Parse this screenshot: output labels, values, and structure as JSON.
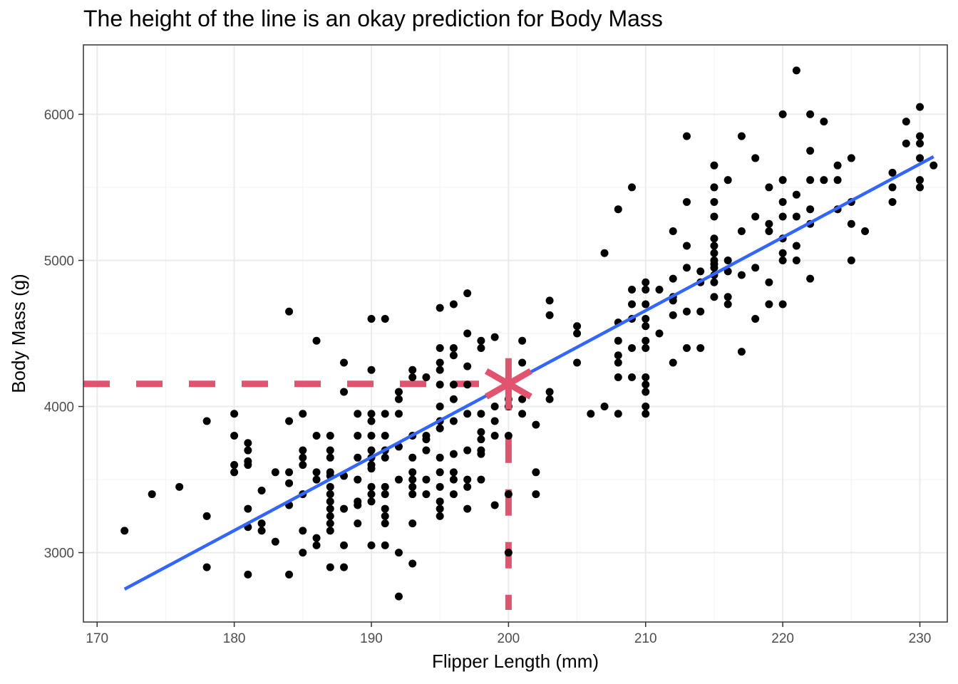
{
  "chart_data": {
    "type": "scatter",
    "title": "The height of the line is an okay prediction for Body Mass",
    "xlabel": "Flipper Length (mm)",
    "ylabel": "Body Mass (g)",
    "xlim": [
      169,
      232
    ],
    "ylim": [
      2525,
      6475
    ],
    "x_ticks": [
      170,
      180,
      190,
      200,
      210,
      220,
      230
    ],
    "y_ticks": [
      3000,
      4000,
      5000,
      6000
    ],
    "grid": true,
    "points": [
      [
        172,
        3150
      ],
      [
        174,
        3400
      ],
      [
        176,
        3450
      ],
      [
        178,
        3900
      ],
      [
        178,
        3250
      ],
      [
        178,
        2900
      ],
      [
        180,
        3950
      ],
      [
        180,
        3800
      ],
      [
        180,
        3600
      ],
      [
        180,
        3550
      ],
      [
        181,
        3750
      ],
      [
        181,
        3700
      ],
      [
        181,
        3625
      ],
      [
        181,
        3600
      ],
      [
        181,
        3300
      ],
      [
        181,
        3175
      ],
      [
        181,
        2850
      ],
      [
        182,
        3425
      ],
      [
        182,
        3200
      ],
      [
        182,
        3150
      ],
      [
        183,
        3550
      ],
      [
        183,
        3075
      ],
      [
        184,
        4650
      ],
      [
        184,
        3900
      ],
      [
        184,
        3550
      ],
      [
        184,
        3325
      ],
      [
        184,
        3475
      ],
      [
        184,
        2850
      ],
      [
        185,
        3950
      ],
      [
        185,
        3700
      ],
      [
        185,
        3650
      ],
      [
        185,
        3600
      ],
      [
        185,
        3400
      ],
      [
        185,
        3150
      ],
      [
        185,
        3000
      ],
      [
        186,
        4450
      ],
      [
        186,
        3800
      ],
      [
        186,
        3550
      ],
      [
        186,
        3500
      ],
      [
        186,
        3100
      ],
      [
        186,
        3050
      ],
      [
        187,
        3800
      ],
      [
        187,
        3700
      ],
      [
        187,
        3650
      ],
      [
        187,
        3550
      ],
      [
        187,
        3525
      ],
      [
        187,
        3450
      ],
      [
        187,
        3400
      ],
      [
        187,
        3350
      ],
      [
        187,
        3300
      ],
      [
        187,
        3250
      ],
      [
        187,
        3200
      ],
      [
        187,
        3150
      ],
      [
        187,
        2900
      ],
      [
        188,
        4300
      ],
      [
        188,
        4100
      ],
      [
        188,
        3525
      ],
      [
        188,
        3300
      ],
      [
        188,
        3050
      ],
      [
        188,
        2900
      ],
      [
        189,
        3950
      ],
      [
        189,
        3800
      ],
      [
        189,
        3650
      ],
      [
        189,
        3500
      ],
      [
        189,
        3350
      ],
      [
        189,
        3325
      ],
      [
        189,
        3200
      ],
      [
        190,
        4600
      ],
      [
        190,
        4250
      ],
      [
        190,
        3950
      ],
      [
        190,
        3900
      ],
      [
        190,
        3800
      ],
      [
        190,
        3700
      ],
      [
        190,
        3650
      ],
      [
        190,
        3600
      ],
      [
        190,
        3575
      ],
      [
        190,
        3450
      ],
      [
        190,
        3400
      ],
      [
        190,
        3350
      ],
      [
        190,
        3050
      ],
      [
        191,
        4600
      ],
      [
        191,
        3950
      ],
      [
        191,
        3800
      ],
      [
        191,
        3700
      ],
      [
        191,
        3650
      ],
      [
        191,
        3450
      ],
      [
        191,
        3400
      ],
      [
        191,
        3300
      ],
      [
        191,
        3250
      ],
      [
        191,
        3200
      ],
      [
        191,
        3050
      ],
      [
        192,
        4100
      ],
      [
        192,
        4050
      ],
      [
        192,
        3950
      ],
      [
        192,
        3725
      ],
      [
        192,
        3500
      ],
      [
        192,
        3000
      ],
      [
        192,
        2700
      ],
      [
        193,
        4250
      ],
      [
        193,
        4200
      ],
      [
        193,
        3800
      ],
      [
        193,
        3650
      ],
      [
        193,
        3550
      ],
      [
        193,
        3500
      ],
      [
        193,
        3450
      ],
      [
        193,
        3400
      ],
      [
        193,
        3200
      ],
      [
        193,
        2925
      ],
      [
        194,
        4200
      ],
      [
        194,
        3800
      ],
      [
        194,
        3775
      ],
      [
        194,
        3700
      ],
      [
        194,
        3500
      ],
      [
        194,
        3400
      ],
      [
        195,
        4675
      ],
      [
        195,
        4400
      ],
      [
        195,
        4300
      ],
      [
        195,
        4250
      ],
      [
        195,
        4150
      ],
      [
        195,
        4000
      ],
      [
        195,
        3900
      ],
      [
        195,
        3850
      ],
      [
        195,
        3650
      ],
      [
        195,
        3550
      ],
      [
        195,
        3450
      ],
      [
        195,
        3350
      ],
      [
        195,
        3300
      ],
      [
        195,
        3250
      ],
      [
        196,
        4700
      ],
      [
        196,
        4400
      ],
      [
        196,
        4350
      ],
      [
        196,
        4150
      ],
      [
        196,
        4050
      ],
      [
        196,
        3900
      ],
      [
        196,
        3675
      ],
      [
        196,
        3550
      ],
      [
        196,
        3500
      ],
      [
        196,
        3400
      ],
      [
        197,
        4775
      ],
      [
        197,
        4500
      ],
      [
        197,
        4275
      ],
      [
        197,
        4150
      ],
      [
        197,
        3950
      ],
      [
        197,
        3700
      ],
      [
        197,
        3500
      ],
      [
        197,
        3450
      ],
      [
        197,
        3300
      ],
      [
        198,
        4450
      ],
      [
        198,
        4400
      ],
      [
        198,
        3950
      ],
      [
        198,
        3825
      ],
      [
        198,
        3775
      ],
      [
        198,
        3700
      ],
      [
        198,
        3675
      ],
      [
        198,
        3500
      ],
      [
        199,
        4475
      ],
      [
        199,
        4000
      ],
      [
        199,
        3900
      ],
      [
        199,
        3800
      ],
      [
        199,
        3325
      ],
      [
        200,
        4050
      ],
      [
        200,
        4000
      ],
      [
        200,
        3800
      ],
      [
        200,
        3400
      ],
      [
        200,
        3000
      ],
      [
        201,
        4450
      ],
      [
        201,
        4300
      ],
      [
        201,
        4050
      ],
      [
        201,
        3950
      ],
      [
        202,
        3875
      ],
      [
        202,
        3550
      ],
      [
        202,
        3400
      ],
      [
        203,
        4725
      ],
      [
        203,
        4625
      ],
      [
        203,
        4100
      ],
      [
        203,
        4050
      ],
      [
        205,
        4550
      ],
      [
        205,
        4500
      ],
      [
        205,
        4300
      ],
      [
        206,
        3950
      ],
      [
        207,
        5050
      ],
      [
        207,
        4000
      ],
      [
        208,
        5350
      ],
      [
        208,
        4575
      ],
      [
        208,
        4450
      ],
      [
        208,
        4350
      ],
      [
        208,
        4300
      ],
      [
        208,
        4200
      ],
      [
        208,
        3950
      ],
      [
        209,
        5500
      ],
      [
        209,
        4800
      ],
      [
        209,
        4700
      ],
      [
        209,
        4600
      ],
      [
        209,
        4400
      ],
      [
        209,
        4200
      ],
      [
        210,
        4850
      ],
      [
        210,
        4800
      ],
      [
        210,
        4700
      ],
      [
        210,
        4600
      ],
      [
        210,
        4550
      ],
      [
        210,
        4450
      ],
      [
        210,
        4400
      ],
      [
        210,
        4200
      ],
      [
        210,
        4150
      ],
      [
        210,
        4100
      ],
      [
        210,
        4000
      ],
      [
        210,
        3950
      ],
      [
        211,
        4800
      ],
      [
        211,
        4500
      ],
      [
        212,
        5200
      ],
      [
        212,
        4875
      ],
      [
        212,
        4750
      ],
      [
        212,
        4725
      ],
      [
        212,
        4625
      ],
      [
        212,
        4300
      ],
      [
        213,
        5850
      ],
      [
        213,
        5400
      ],
      [
        213,
        5100
      ],
      [
        213,
        4950
      ],
      [
        213,
        4650
      ],
      [
        213,
        4400
      ],
      [
        214,
        4925
      ],
      [
        214,
        4850
      ],
      [
        214,
        4650
      ],
      [
        214,
        4400
      ],
      [
        215,
        5650
      ],
      [
        215,
        5500
      ],
      [
        215,
        5400
      ],
      [
        215,
        5300
      ],
      [
        215,
        5150
      ],
      [
        215,
        5100
      ],
      [
        215,
        5050
      ],
      [
        215,
        5000
      ],
      [
        215,
        4975
      ],
      [
        215,
        4950
      ],
      [
        215,
        4900
      ],
      [
        215,
        4850
      ],
      [
        215,
        4750
      ],
      [
        216,
        5550
      ],
      [
        216,
        5000
      ],
      [
        216,
        4925
      ],
      [
        216,
        4750
      ],
      [
        216,
        4700
      ],
      [
        217,
        5850
      ],
      [
        217,
        5200
      ],
      [
        217,
        4900
      ],
      [
        217,
        4375
      ],
      [
        218,
        5700
      ],
      [
        218,
        5300
      ],
      [
        218,
        4950
      ],
      [
        218,
        4600
      ],
      [
        219,
        5500
      ],
      [
        219,
        5250
      ],
      [
        219,
        5200
      ],
      [
        219,
        4850
      ],
      [
        219,
        4700
      ],
      [
        220,
        6000
      ],
      [
        220,
        5550
      ],
      [
        220,
        5400
      ],
      [
        220,
        5300
      ],
      [
        220,
        5150
      ],
      [
        220,
        5050
      ],
      [
        220,
        5000
      ],
      [
        220,
        4700
      ],
      [
        221,
        6300
      ],
      [
        221,
        5450
      ],
      [
        221,
        5300
      ],
      [
        221,
        5100
      ],
      [
        221,
        5000
      ],
      [
        222,
        6000
      ],
      [
        222,
        5750
      ],
      [
        222,
        5550
      ],
      [
        222,
        5350
      ],
      [
        222,
        5250
      ],
      [
        222,
        4875
      ],
      [
        223,
        5950
      ],
      [
        223,
        5550
      ],
      [
        224,
        5650
      ],
      [
        224,
        5550
      ],
      [
        224,
        5350
      ],
      [
        225,
        5700
      ],
      [
        225,
        5400
      ],
      [
        225,
        5250
      ],
      [
        225,
        5000
      ],
      [
        226,
        5200
      ],
      [
        228,
        5600
      ],
      [
        228,
        5500
      ],
      [
        228,
        5400
      ],
      [
        229,
        5950
      ],
      [
        229,
        5800
      ],
      [
        230,
        6050
      ],
      [
        230,
        5850
      ],
      [
        230,
        5800
      ],
      [
        230,
        5700
      ],
      [
        230,
        5550
      ],
      [
        230,
        5500
      ],
      [
        231,
        5650
      ]
    ],
    "fit_line": {
      "x": [
        172,
        231
      ],
      "y": [
        2750,
        5710
      ],
      "color": "#3366ff"
    },
    "highlight": {
      "x": 200,
      "y": 4155,
      "color": "#e05470",
      "marker": "asterisk",
      "dashed_guides": true
    },
    "point_color": "#000000"
  }
}
